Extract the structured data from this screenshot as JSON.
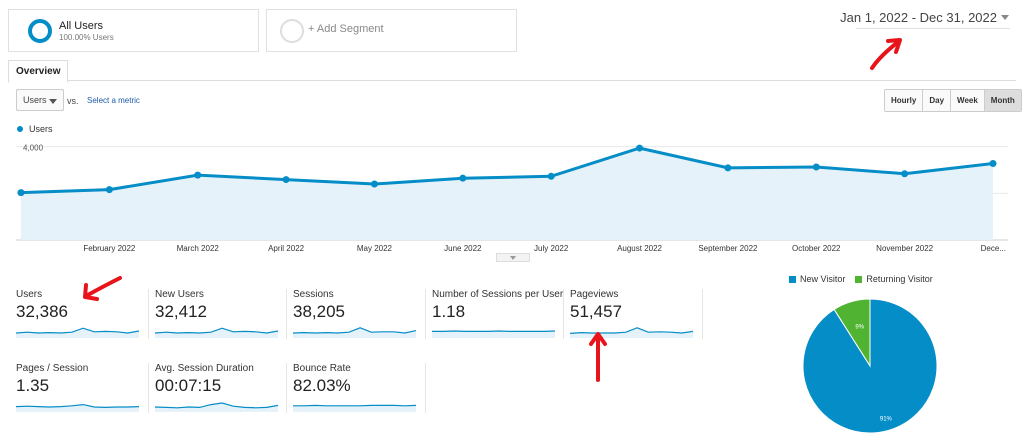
{
  "segments": {
    "active_title": "All Users",
    "active_sub": "100.00% Users",
    "add_label": "+ Add Segment"
  },
  "date_range": "Jan 1, 2022 - Dec 31, 2022",
  "tabs": [
    "Overview"
  ],
  "controls": {
    "metric_select": "Users",
    "vs": "vs.",
    "select_metric": "Select a metric",
    "periods": [
      "Hourly",
      "Day",
      "Week",
      "Month"
    ],
    "active_period": "Month"
  },
  "colors": {
    "accent": "#058dc7",
    "returning": "#50b432",
    "annotation": "#e8141c"
  },
  "chart_data": [
    {
      "type": "area",
      "series": [
        {
          "name": "Users",
          "values": [
            2030,
            2160,
            2780,
            2590,
            2400,
            2650,
            2730,
            3940,
            3090,
            3130,
            2840,
            3280
          ]
        }
      ],
      "x": [
        "",
        "February 2022",
        "March 2022",
        "April 2022",
        "May 2022",
        "June 2022",
        "July 2022",
        "August 2022",
        "September 2022",
        "October 2022",
        "November 2022",
        "Dece..."
      ],
      "yticks": [
        "4,000",
        "2,000"
      ],
      "ylim": [
        0,
        4500
      ],
      "grid": true
    },
    {
      "type": "pie",
      "categories": [
        "New Visitor",
        "Returning Visitor"
      ],
      "values": [
        91,
        9
      ],
      "labels": [
        "91%",
        "9%"
      ]
    }
  ],
  "metrics": [
    {
      "label": "Users",
      "value": "32,386",
      "spark": [
        3,
        3.2,
        3,
        3.1,
        3,
        3.2,
        4.2,
        3.3,
        3.4,
        3.3,
        3,
        3.5
      ]
    },
    {
      "label": "New Users",
      "value": "32,412",
      "spark": [
        3,
        3.2,
        3,
        3.1,
        3,
        3.2,
        4.2,
        3.3,
        3.4,
        3.3,
        3,
        3.5
      ]
    },
    {
      "label": "Sessions",
      "value": "38,205",
      "spark": [
        3,
        3.1,
        3,
        3.1,
        3,
        3.2,
        4.3,
        3.2,
        3.3,
        3.3,
        3,
        3.6
      ]
    },
    {
      "label": "Number of Sessions per User",
      "value": "1.18",
      "spark": [
        3.4,
        3.4,
        3.5,
        3.4,
        3.4,
        3.4,
        3.5,
        3.4,
        3.4,
        3.4,
        3.4,
        3.5
      ]
    },
    {
      "label": "Pageviews",
      "value": "51,457",
      "spark": [
        2.9,
        3.1,
        3,
        3,
        3,
        3.2,
        4.3,
        3.2,
        3.3,
        3.2,
        3,
        3.4
      ]
    },
    {
      "label": "Pages / Session",
      "value": "1.35",
      "spark": [
        3.1,
        3.2,
        3.1,
        3,
        3.1,
        3.3,
        3.6,
        3,
        2.9,
        3,
        3,
        3.1
      ]
    },
    {
      "label": "Avg. Session Duration",
      "value": "00:07:15",
      "spark": [
        3,
        2.9,
        2.8,
        3,
        2.9,
        3.6,
        4,
        3.2,
        2.9,
        2.8,
        2.9,
        3.4
      ]
    },
    {
      "label": "Bounce Rate",
      "value": "82.03%",
      "spark": [
        3.3,
        3.3,
        3.4,
        3.3,
        3.3,
        3.3,
        3.3,
        3.4,
        3.4,
        3.4,
        3.3,
        3.4
      ]
    }
  ]
}
